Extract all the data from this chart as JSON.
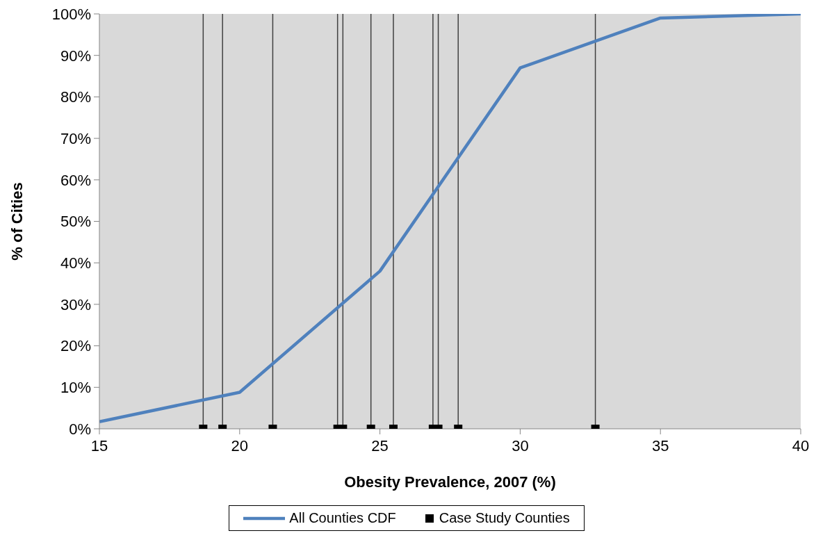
{
  "chart_data": {
    "type": "line",
    "xlabel": "Obesity Prevalence, 2007 (%)",
    "ylabel": "% of Cities",
    "xlim": [
      15,
      40
    ],
    "xticks": [
      15,
      20,
      25,
      30,
      35,
      40
    ],
    "ylim": [
      0,
      100
    ],
    "yticks": [
      {
        "value": 0,
        "label": "0%"
      },
      {
        "value": 10,
        "label": "10%"
      },
      {
        "value": 20,
        "label": "20%"
      },
      {
        "value": 30,
        "label": "30%"
      },
      {
        "value": 40,
        "label": "40%"
      },
      {
        "value": 50,
        "label": "50%"
      },
      {
        "value": 60,
        "label": "60%"
      },
      {
        "value": 70,
        "label": "70%"
      },
      {
        "value": 80,
        "label": "80%"
      },
      {
        "value": 90,
        "label": "90%"
      },
      {
        "value": 100,
        "label": "100%"
      }
    ],
    "grid": false,
    "legend": "bottom",
    "series": [
      {
        "name": "All Counties CDF",
        "color": "#4f81bd",
        "marker": "none",
        "x": [
          15,
          20,
          25,
          30,
          35,
          40
        ],
        "values": [
          1.7,
          8.8,
          38,
          87,
          99,
          100
        ]
      },
      {
        "name": "Case Study Counties",
        "type": "scatter",
        "color": "#000000",
        "marker": "square",
        "x": [
          18.7,
          19.39,
          21.18,
          23.49,
          23.68,
          24.68,
          25.48,
          26.89,
          27.08,
          27.79,
          32.68
        ],
        "values": [
          0,
          0,
          0,
          0,
          0,
          0,
          0,
          0,
          0,
          0,
          0
        ]
      }
    ],
    "ref_lines": [
      {
        "axis": "x",
        "value": 18.7,
        "color": "#404040"
      },
      {
        "axis": "x",
        "value": 19.39,
        "color": "#404040"
      },
      {
        "axis": "x",
        "value": 21.18,
        "color": "#404040"
      },
      {
        "axis": "x",
        "value": 23.49,
        "color": "#404040"
      },
      {
        "axis": "x",
        "value": 23.68,
        "color": "#404040"
      },
      {
        "axis": "x",
        "value": 24.68,
        "color": "#404040"
      },
      {
        "axis": "x",
        "value": 25.48,
        "color": "#404040"
      },
      {
        "axis": "x",
        "value": 26.89,
        "color": "#404040"
      },
      {
        "axis": "x",
        "value": 27.08,
        "color": "#404040"
      },
      {
        "axis": "x",
        "value": 27.79,
        "color": "#404040"
      },
      {
        "axis": "x",
        "value": 32.68,
        "color": "#404040"
      }
    ]
  }
}
